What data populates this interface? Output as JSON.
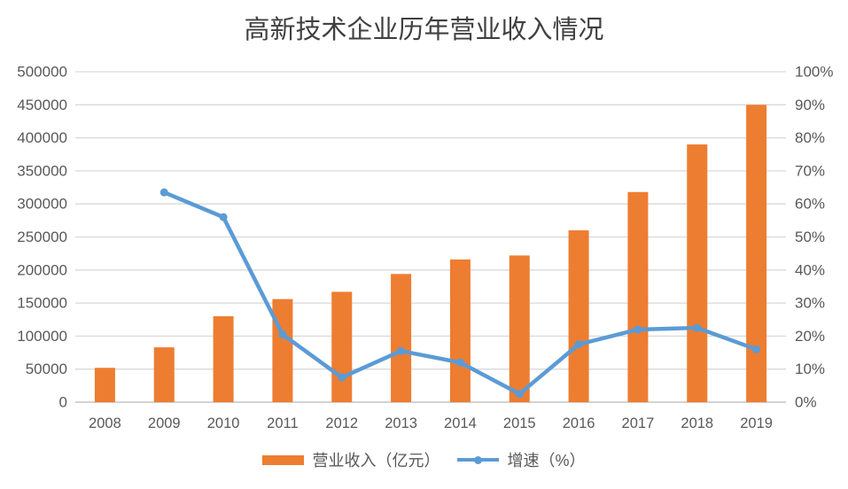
{
  "colors": {
    "bar": "#ED7D31",
    "line": "#5B9BD5",
    "grid": "#D9D9D9",
    "baseline": "#D2D2D2",
    "axis_text": "#595959",
    "title_text": "#404040",
    "background": "#FFFFFF"
  },
  "chart_data": {
    "type": "bar",
    "subtype": "combo-bar-line-dual-axis",
    "title": "高新技术企业历年营业收入情况",
    "categories": [
      "2008",
      "2009",
      "2010",
      "2011",
      "2012",
      "2013",
      "2014",
      "2015",
      "2016",
      "2017",
      "2018",
      "2019"
    ],
    "series": [
      {
        "name": "营业收入（亿元）",
        "type": "bar",
        "axis": "left",
        "color": "#ED7D31",
        "values": [
          52000,
          83000,
          130000,
          156000,
          167000,
          194000,
          216000,
          222000,
          260000,
          318000,
          390000,
          450000
        ]
      },
      {
        "name": "增速（%）",
        "type": "line",
        "axis": "right",
        "color": "#5B9BD5",
        "values": [
          null,
          63.5,
          56,
          20.5,
          7.5,
          15.5,
          12,
          2.5,
          17.5,
          22,
          22.5,
          16
        ]
      }
    ],
    "left_axis": {
      "min": 0,
      "max": 500000,
      "step": 50000,
      "tick_labels": [
        "0",
        "50000",
        "100000",
        "150000",
        "200000",
        "250000",
        "300000",
        "350000",
        "400000",
        "450000",
        "500000"
      ]
    },
    "right_axis": {
      "min": 0,
      "max": 100,
      "step": 10,
      "tick_labels": [
        "0%",
        "10%",
        "20%",
        "30%",
        "40%",
        "50%",
        "60%",
        "70%",
        "80%",
        "90%",
        "100%"
      ]
    },
    "grid": true,
    "legend_position": "bottom"
  }
}
